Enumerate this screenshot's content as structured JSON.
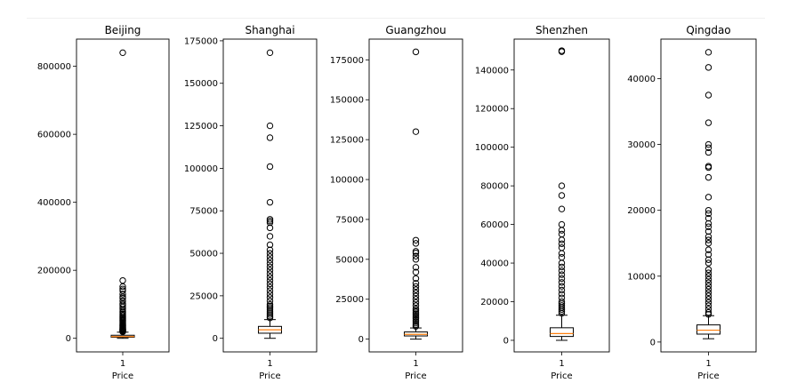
{
  "chart_data": [
    {
      "type": "box",
      "title": "Beijing",
      "xlabel": "Price",
      "x_tick": "1",
      "ylim": [
        -40000,
        880000
      ],
      "yticks": [
        0,
        200000,
        400000,
        600000,
        800000
      ],
      "box": {
        "whisker_low": 0,
        "q1": 3000,
        "median": 5000,
        "q3": 9000,
        "whisker_high": 18000
      },
      "outliers": [
        840000,
        170000,
        152000,
        145000,
        140000,
        130000,
        122000,
        118000,
        110000,
        102000,
        98000,
        92000,
        86000,
        80000,
        76000,
        72000,
        68000,
        64000,
        60000,
        57000,
        54000,
        51000,
        48000,
        45000,
        42000,
        40000,
        38000,
        36000,
        34000,
        32000,
        30000,
        28000,
        27000,
        26000,
        25000,
        24000,
        23000,
        22000,
        21000,
        20000,
        19000
      ]
    },
    {
      "type": "box",
      "title": "Shanghai",
      "xlabel": "Price",
      "x_tick": "1",
      "ylim": [
        -8000,
        176000
      ],
      "yticks": [
        0,
        25000,
        50000,
        75000,
        100000,
        125000,
        150000,
        175000
      ],
      "box": {
        "whisker_low": 0,
        "q1": 3000,
        "median": 5000,
        "q3": 7000,
        "whisker_high": 11000
      },
      "outliers": [
        168000,
        125000,
        118000,
        101000,
        80000,
        70000,
        69000,
        68000,
        65000,
        60000,
        55000,
        52000,
        50000,
        48000,
        46000,
        44000,
        42000,
        40000,
        38000,
        36000,
        34000,
        32000,
        30000,
        28000,
        26000,
        24000,
        22000,
        20000,
        19000,
        18000,
        17000,
        16000,
        15000,
        14000,
        13000,
        12000
      ]
    },
    {
      "type": "box",
      "title": "Guangzhou",
      "xlabel": "Price",
      "x_tick": "1",
      "ylim": [
        -8000,
        188000
      ],
      "yticks": [
        0,
        25000,
        50000,
        75000,
        100000,
        125000,
        150000,
        175000
      ],
      "box": {
        "whisker_low": 0,
        "q1": 2000,
        "median": 3000,
        "q3": 4500,
        "whisker_high": 7000
      },
      "outliers": [
        180000,
        130000,
        62000,
        60000,
        55000,
        54000,
        52000,
        50000,
        45000,
        42000,
        38000,
        35000,
        33000,
        31000,
        29000,
        27000,
        25000,
        23000,
        21000,
        19000,
        18000,
        17000,
        16000,
        15000,
        14000,
        13000,
        12000,
        11000,
        10000,
        9000,
        8000
      ]
    },
    {
      "type": "box",
      "title": "Shenzhen",
      "xlabel": "Price",
      "x_tick": "1",
      "ylim": [
        -6000,
        156000
      ],
      "yticks": [
        0,
        20000,
        40000,
        60000,
        80000,
        100000,
        120000,
        140000
      ],
      "box": {
        "whisker_low": 0,
        "q1": 2000,
        "median": 3500,
        "q3": 6500,
        "whisker_high": 13000
      },
      "outliers": [
        150000,
        149500,
        80000,
        75000,
        68000,
        60000,
        57000,
        55000,
        52000,
        50000,
        48000,
        45000,
        43000,
        40000,
        38000,
        36000,
        34000,
        32000,
        30000,
        28000,
        26000,
        24000,
        22000,
        20000,
        19000,
        18000,
        17000,
        16000,
        15000,
        14000
      ]
    },
    {
      "type": "box",
      "title": "Qingdao",
      "xlabel": "Price",
      "x_tick": "1",
      "ylim": [
        -1500,
        46000
      ],
      "yticks": [
        0,
        10000,
        20000,
        30000,
        40000
      ],
      "box": {
        "whisker_low": 500,
        "q1": 1200,
        "median": 1800,
        "q3": 2600,
        "whisker_high": 4000
      },
      "outliers": [
        44000,
        41700,
        37500,
        33300,
        30000,
        29500,
        28800,
        26700,
        26500,
        25000,
        22000,
        20000,
        19500,
        18800,
        18000,
        17500,
        16800,
        16000,
        15500,
        15000,
        14000,
        13300,
        12500,
        12000,
        11000,
        10500,
        10000,
        9500,
        9000,
        8500,
        8000,
        7500,
        7000,
        6500,
        6000,
        5500,
        5000,
        4500,
        4200
      ]
    }
  ]
}
